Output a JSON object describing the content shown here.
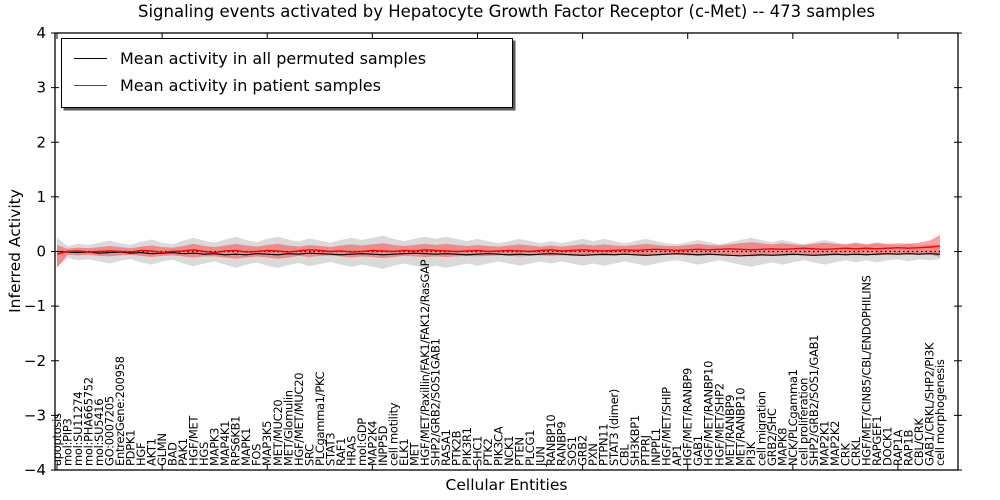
{
  "title": "Signaling events activated by Hepatocyte Growth Factor Receptor (c-Met) -- 473 samples",
  "axes": {
    "ylabel": "Inferred Activity",
    "xlabel": "Cellular Entities",
    "ylim": [
      -4,
      4
    ],
    "yticks": [
      -4,
      -3,
      -2,
      -1,
      0,
      1,
      2,
      3,
      4
    ],
    "xtick_every_n_entities": 10
  },
  "legend": {
    "items": [
      {
        "label": "Mean activity in all permuted samples",
        "color": "#000000"
      },
      {
        "label": "Mean activity in patient samples",
        "color": "#ff0000"
      }
    ]
  },
  "colors": {
    "permuted_line": "#000000",
    "patient_line": "#ff0000",
    "permuted_band": "#b5b5b5",
    "patient_band": "#ff2a2a",
    "zero_line": "#000000",
    "frame": "#000000"
  },
  "chart_data": {
    "type": "line",
    "title": "Signaling events activated by Hepatocyte Growth Factor Receptor (c-Met) -- 473 samples",
    "xlabel": "Cellular Entities",
    "ylabel": "Inferred Activity",
    "ylim": [
      -4,
      4
    ],
    "grid": false,
    "legend_position": "upper left",
    "zero_reference_line": 0,
    "categories": [
      "apoptosis",
      "mol:PIP3",
      "mol:SU11274",
      "mol:PHA665752",
      "mol:SU5416",
      "GO:0007205",
      "EntrezGene:200958",
      "PDPK1",
      "HGF",
      "AKT1",
      "GLMN",
      "BAD",
      "PAK1",
      "HGF/MET",
      "HGS",
      "MAPK3",
      "MAP4K1",
      "RPS6KB1",
      "MAPK1",
      "FOS",
      "MAP3K5",
      "MET/MUC20",
      "MET/Glomulin",
      "HGF/MET/MUC20",
      "SRC",
      "PLCgamma1/PKC",
      "STAT3",
      "RAF1",
      "HRAS",
      "mol:GDP",
      "MAP2K4",
      "INPP5D",
      "cell motility",
      "ELK1",
      "MET",
      "HGF/MET/Paxillin/FAK1/FAK12/RasGAP",
      "SHP2/GRB2/SOS1GAB1",
      "RASA1",
      "PTK2B",
      "PIK3R1",
      "SHC1",
      "PTK2",
      "PIK3CA",
      "NCK1",
      "PTEN",
      "PLCG1",
      "JUN",
      "RANBP10",
      "RANBP9",
      "SOS1",
      "GRB2",
      "PXN",
      "PTPN11",
      "STAT3 (dimer)",
      "CBL",
      "SH3KBP1",
      "PTPRJ",
      "INPPL1",
      "HGF/MET/SHIP",
      "AP1",
      "HGF/MET/RANBP9",
      "GAB1",
      "HGF/MET/RANBP10",
      "HGF/MET/SHP2",
      "MET/RANBP9",
      "MET/RANBP10",
      "PI3K",
      "cell migration",
      "GRB2/SHC",
      "MAPK8",
      "NCK/PLCgamma1",
      "cell proliferation",
      "SHP2/GRB2/SOS1/GAB1",
      "MAP2K1",
      "MAP2K2",
      "CRK",
      "CRKL",
      "HGF/MET/CIN85/CBL/ENDOPHILINS",
      "RAPGEF1",
      "DOCK1",
      "RAP1A",
      "RAP1B",
      "CBL/CRK",
      "GAB1/CRKL/SHP2/PI3K",
      "cell morphogenesis"
    ],
    "series": [
      {
        "name": "Mean activity in all permuted samples",
        "color": "#000000",
        "values": [
          0.0,
          -0.01,
          -0.02,
          -0.01,
          -0.03,
          -0.02,
          -0.01,
          -0.03,
          -0.02,
          -0.04,
          -0.03,
          -0.02,
          -0.04,
          -0.03,
          -0.05,
          -0.04,
          -0.06,
          -0.05,
          -0.06,
          -0.04,
          -0.05,
          -0.06,
          -0.04,
          -0.05,
          -0.03,
          -0.04,
          -0.05,
          -0.06,
          -0.05,
          -0.04,
          -0.05,
          -0.06,
          -0.05,
          -0.04,
          -0.03,
          -0.04,
          -0.05,
          -0.04,
          -0.05,
          -0.06,
          -0.05,
          -0.04,
          -0.05,
          -0.06,
          -0.05,
          -0.06,
          -0.05,
          -0.04,
          -0.05,
          -0.06,
          -0.07,
          -0.06,
          -0.05,
          -0.06,
          -0.05,
          -0.06,
          -0.07,
          -0.06,
          -0.05,
          -0.04,
          -0.05,
          -0.06,
          -0.05,
          -0.06,
          -0.07,
          -0.08,
          -0.07,
          -0.06,
          -0.07,
          -0.06,
          -0.05,
          -0.06,
          -0.07,
          -0.06,
          -0.05,
          -0.06,
          -0.05,
          -0.06,
          -0.05,
          -0.04,
          -0.05,
          -0.04,
          -0.05,
          -0.04,
          -0.05
        ]
      },
      {
        "name": "Mean activity in patient samples",
        "color": "#ff0000",
        "values": [
          -0.05,
          0.0,
          0.01,
          -0.01,
          0.0,
          0.01,
          0.0,
          -0.01,
          0.02,
          0.01,
          -0.02,
          0.0,
          0.01,
          0.03,
          0.0,
          -0.02,
          0.01,
          0.02,
          -0.01,
          0.0,
          0.02,
          0.01,
          -0.01,
          0.01,
          0.03,
          0.02,
          0.0,
          0.01,
          -0.01,
          0.0,
          0.02,
          0.01,
          0.0,
          0.02,
          0.01,
          0.03,
          0.02,
          0.01,
          0.0,
          0.01,
          0.02,
          0.0,
          0.01,
          0.02,
          0.01,
          0.0,
          0.02,
          0.03,
          0.01,
          0.02,
          0.03,
          0.02,
          0.01,
          0.02,
          0.03,
          0.02,
          0.03,
          0.04,
          0.03,
          0.02,
          0.03,
          0.04,
          0.03,
          0.04,
          0.05,
          0.04,
          0.03,
          0.04,
          0.05,
          0.04,
          0.05,
          0.06,
          0.05,
          0.04,
          0.05,
          0.06,
          0.05,
          0.06,
          0.05,
          0.06,
          0.07,
          0.06,
          0.07,
          0.08,
          0.1
        ]
      }
    ],
    "bands": [
      {
        "name": "permuted-range",
        "upper": [
          0.25,
          0.1,
          0.14,
          0.12,
          0.16,
          0.2,
          0.15,
          0.12,
          0.18,
          0.22,
          0.16,
          0.13,
          0.2,
          0.25,
          0.2,
          0.16,
          0.22,
          0.27,
          0.21,
          0.17,
          0.23,
          0.27,
          0.22,
          0.18,
          0.24,
          0.2,
          0.16,
          0.21,
          0.25,
          0.21,
          0.25,
          0.29,
          0.23,
          0.19,
          0.23,
          0.27,
          0.23,
          0.27,
          0.23,
          0.19,
          0.23,
          0.19,
          0.15,
          0.19,
          0.23,
          0.19,
          0.15,
          0.19,
          0.15,
          0.19,
          0.23,
          0.19,
          0.23,
          0.19,
          0.15,
          0.19,
          0.23,
          0.19,
          0.15,
          0.13,
          0.17,
          0.21,
          0.17,
          0.13,
          0.17,
          0.21,
          0.25,
          0.21,
          0.17,
          0.21,
          0.17,
          0.13,
          0.17,
          0.21,
          0.17,
          0.13,
          0.17,
          0.13,
          0.17,
          0.13,
          0.11,
          0.15,
          0.11,
          0.13,
          0.11
        ],
        "lower": [
          -0.28,
          -0.12,
          -0.16,
          -0.14,
          -0.18,
          -0.22,
          -0.17,
          -0.14,
          -0.2,
          -0.24,
          -0.18,
          -0.15,
          -0.22,
          -0.27,
          -0.22,
          -0.18,
          -0.24,
          -0.3,
          -0.24,
          -0.2,
          -0.26,
          -0.3,
          -0.25,
          -0.21,
          -0.27,
          -0.23,
          -0.19,
          -0.24,
          -0.28,
          -0.24,
          -0.28,
          -0.32,
          -0.26,
          -0.22,
          -0.26,
          -0.3,
          -0.26,
          -0.3,
          -0.26,
          -0.22,
          -0.26,
          -0.22,
          -0.18,
          -0.22,
          -0.26,
          -0.22,
          -0.18,
          -0.22,
          -0.18,
          -0.22,
          -0.26,
          -0.22,
          -0.26,
          -0.22,
          -0.18,
          -0.22,
          -0.26,
          -0.22,
          -0.18,
          -0.16,
          -0.2,
          -0.24,
          -0.2,
          -0.16,
          -0.2,
          -0.24,
          -0.28,
          -0.24,
          -0.2,
          -0.24,
          -0.2,
          -0.16,
          -0.2,
          -0.24,
          -0.2,
          -0.16,
          -0.2,
          -0.16,
          -0.2,
          -0.16,
          -0.14,
          -0.18,
          -0.14,
          -0.16,
          -0.14
        ]
      },
      {
        "name": "patient-range",
        "upper": [
          0.12,
          0.05,
          0.07,
          0.06,
          0.08,
          0.1,
          0.08,
          0.06,
          0.09,
          0.11,
          0.08,
          0.07,
          0.1,
          0.14,
          0.1,
          0.08,
          0.11,
          0.14,
          0.11,
          0.09,
          0.12,
          0.14,
          0.11,
          0.09,
          0.12,
          0.1,
          0.08,
          0.11,
          0.13,
          0.11,
          0.13,
          0.15,
          0.12,
          0.1,
          0.12,
          0.14,
          0.12,
          0.14,
          0.12,
          0.1,
          0.12,
          0.1,
          0.09,
          0.11,
          0.13,
          0.11,
          0.09,
          0.11,
          0.09,
          0.11,
          0.13,
          0.11,
          0.13,
          0.11,
          0.1,
          0.12,
          0.14,
          0.12,
          0.1,
          0.1,
          0.12,
          0.14,
          0.12,
          0.11,
          0.13,
          0.15,
          0.17,
          0.15,
          0.13,
          0.15,
          0.13,
          0.12,
          0.14,
          0.16,
          0.14,
          0.13,
          0.15,
          0.13,
          0.15,
          0.14,
          0.15,
          0.14,
          0.16,
          0.2,
          0.3
        ],
        "lower": [
          -0.3,
          -0.06,
          -0.07,
          -0.06,
          -0.08,
          -0.09,
          -0.07,
          -0.06,
          -0.08,
          -0.1,
          -0.08,
          -0.07,
          -0.09,
          -0.11,
          -0.09,
          -0.09,
          -0.11,
          -0.13,
          -0.11,
          -0.09,
          -0.11,
          -0.13,
          -0.11,
          -0.08,
          -0.1,
          -0.08,
          -0.07,
          -0.09,
          -0.11,
          -0.09,
          -0.1,
          -0.12,
          -0.1,
          -0.08,
          -0.09,
          -0.1,
          -0.09,
          -0.1,
          -0.09,
          -0.08,
          -0.09,
          -0.08,
          -0.07,
          -0.08,
          -0.09,
          -0.08,
          -0.07,
          -0.08,
          -0.07,
          -0.08,
          -0.08,
          -0.07,
          -0.08,
          -0.07,
          -0.06,
          -0.07,
          -0.08,
          -0.07,
          -0.06,
          -0.06,
          -0.07,
          -0.08,
          -0.07,
          -0.06,
          -0.07,
          -0.08,
          -0.09,
          -0.08,
          -0.07,
          -0.08,
          -0.07,
          -0.06,
          -0.07,
          -0.08,
          -0.07,
          -0.06,
          -0.07,
          -0.06,
          -0.07,
          -0.06,
          -0.06,
          -0.05,
          -0.06,
          -0.05,
          -0.1
        ]
      }
    ]
  }
}
